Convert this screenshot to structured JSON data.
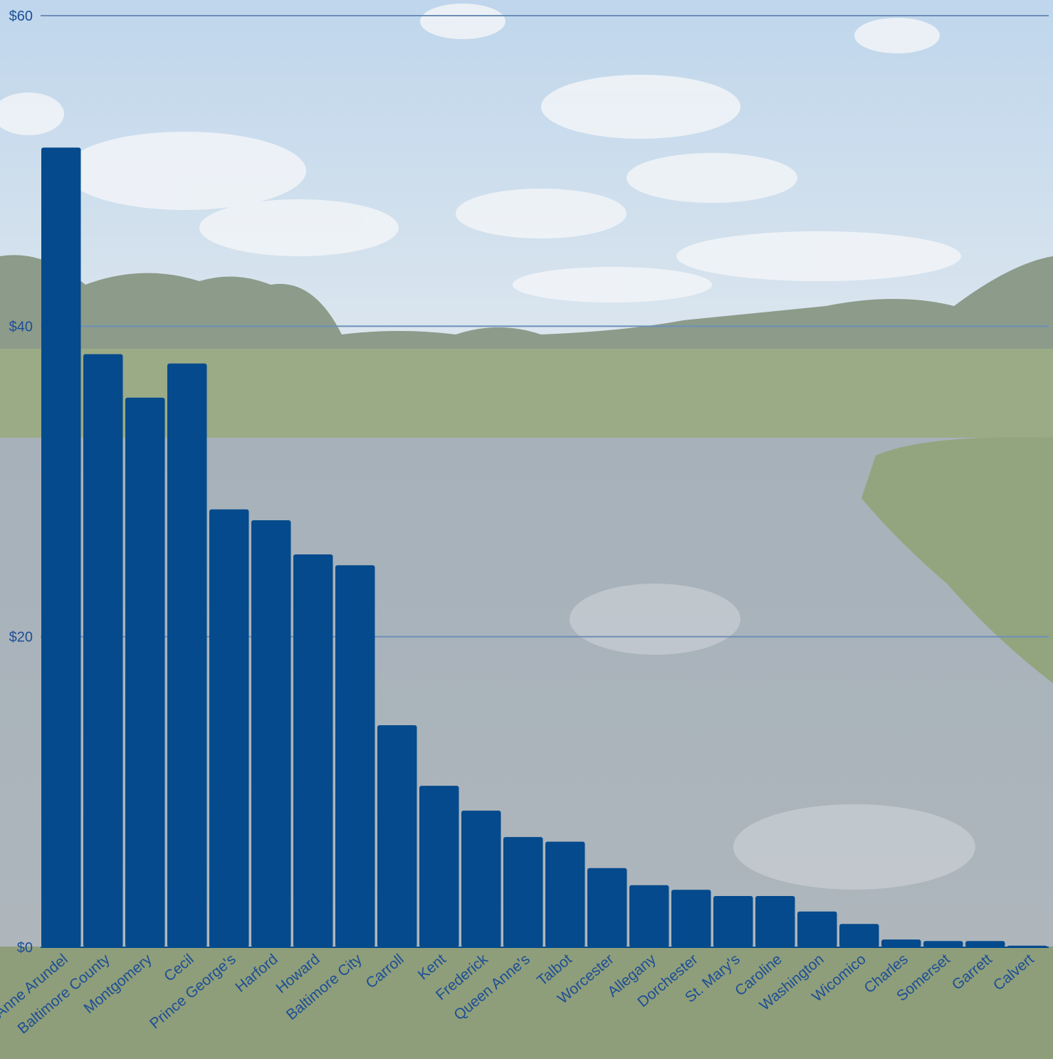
{
  "colors": {
    "bar": "#044A8C",
    "label": "#1D4E96",
    "gridline": "#6D8FB8",
    "sky_top": "#BFD6EC",
    "sky_bottom": "#DCE6EE",
    "treeline": "#8C9B8A",
    "marsh": "#9AAB86",
    "water_top": "#A6B1BA",
    "water_bottom": "#AEB6BC",
    "grass": "#8E9E7A"
  },
  "chart_data": {
    "type": "bar",
    "title": "",
    "xlabel": "",
    "ylabel": "",
    "ylim": [
      0,
      60
    ],
    "y_ticks": [
      0,
      20,
      40,
      60
    ],
    "y_tick_labels": [
      "$0",
      "$20",
      "$40",
      "$60"
    ],
    "grid": true,
    "legend": "none",
    "categories": [
      "Anne Arundel",
      "Baltimore County",
      "Montgomery",
      "Cecil",
      "Prince George's",
      "Harford",
      "Howard",
      "Baltimore City",
      "Carroll",
      "Kent",
      "Frederick",
      "Queen Anne's",
      "Talbot",
      "Worcester",
      "Allegany",
      "Dorchester",
      "St. Mary's",
      "Caroline",
      "Washington",
      "Wicomico",
      "Charles",
      "Somerset",
      "Garrett",
      "Calvert"
    ],
    "values": [
      51.5,
      38.2,
      35.4,
      37.6,
      28.2,
      27.5,
      25.3,
      24.6,
      14.3,
      10.4,
      8.8,
      7.1,
      6.8,
      5.1,
      4.0,
      3.7,
      3.3,
      3.3,
      2.3,
      1.5,
      0.5,
      0.4,
      0.4,
      0.1
    ]
  }
}
